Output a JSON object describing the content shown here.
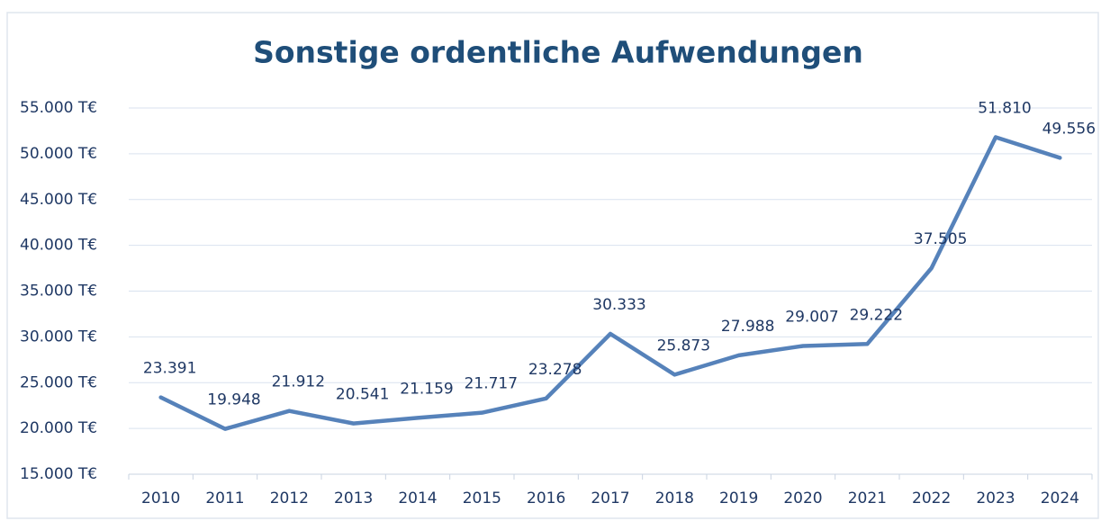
{
  "chart_data": {
    "type": "line",
    "title": "Sonstige ordentliche Aufwendungen",
    "categories": [
      "2010",
      "2011",
      "2012",
      "2013",
      "2014",
      "2015",
      "2016",
      "2017",
      "2018",
      "2019",
      "2020",
      "2021",
      "2022",
      "2023",
      "2024"
    ],
    "values": [
      23391,
      19948,
      21912,
      20541,
      21159,
      21717,
      23278,
      30333,
      25873,
      27988,
      29007,
      29222,
      37505,
      51810,
      49556
    ],
    "value_labels": [
      "23.391",
      "19.948",
      "21.912",
      "20.541",
      "21.159",
      "21.717",
      "23.278",
      "30.333",
      "25.873",
      "27.988",
      "29.007",
      "29.222",
      "37.505",
      "51.810",
      "49.556"
    ],
    "color": "#5682ba",
    "ylim": [
      15000,
      55000
    ],
    "yticks": [
      {
        "value": 15000,
        "label": "15.000 T€"
      },
      {
        "value": 20000,
        "label": "20.000 T€"
      },
      {
        "value": 25000,
        "label": "25.000 T€"
      },
      {
        "value": 30000,
        "label": "30.000 T€"
      },
      {
        "value": 35000,
        "label": "35.000 T€"
      },
      {
        "value": 40000,
        "label": "40.000 T€"
      },
      {
        "value": 45000,
        "label": "45.000 T€"
      },
      {
        "value": 50000,
        "label": "50.000 T€"
      },
      {
        "value": 55000,
        "label": "55.000 T€"
      }
    ],
    "grid": true
  }
}
